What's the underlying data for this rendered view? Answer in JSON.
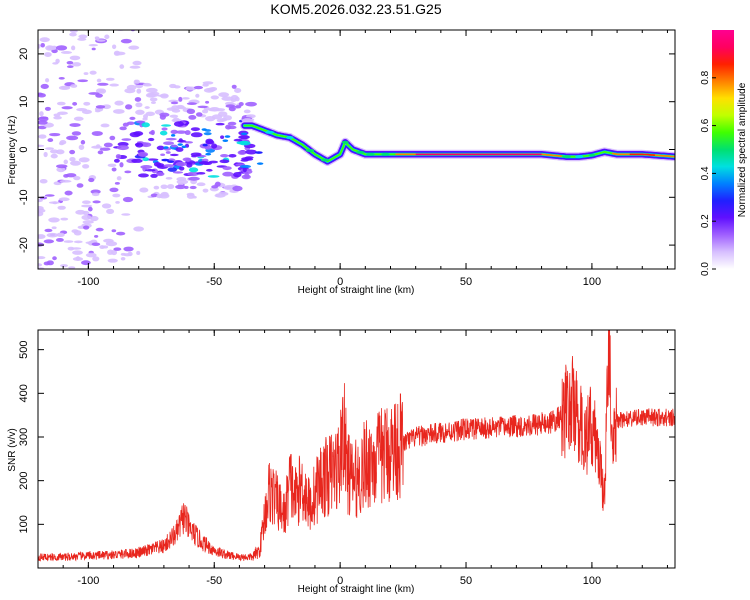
{
  "title": "KOM5.2026.032.23.51.G25",
  "chart_data": [
    {
      "type": "heatmap",
      "title": "KOM5.2026.032.23.51.G25",
      "xlabel": "Height of straight line (km)",
      "ylabel": "Frequency (Hz)",
      "xlim": [
        -120,
        133
      ],
      "ylim": [
        -25,
        25
      ],
      "xticks": [
        -100,
        -50,
        0,
        50,
        100
      ],
      "xtick_labels": [
        "-100",
        "-50",
        "0",
        "50",
        "100"
      ],
      "yticks": [
        -20,
        -10,
        0,
        10,
        20
      ],
      "ytick_labels": [
        "-20",
        "-10",
        "0",
        "10",
        "20"
      ],
      "grid": false,
      "signal_trace": {
        "height_km": [
          -35,
          -30,
          -25,
          -20,
          -15,
          -10,
          -5,
          0,
          2,
          5,
          10,
          20,
          40,
          60,
          80,
          90,
          95,
          100,
          105,
          110,
          120,
          133
        ],
        "frequency_hz": [
          5,
          4,
          3,
          2.5,
          1,
          -1,
          -2.5,
          -1,
          1.5,
          0,
          -1,
          -1,
          -1,
          -1,
          -1,
          -1.5,
          -1.5,
          -1.2,
          -0.5,
          -1,
          -1,
          -1.5
        ]
      },
      "colorbar": {
        "label": "Normalized spectral amplitude",
        "range": [
          0,
          1
        ],
        "ticks": [
          0.0,
          0.2,
          0.4,
          0.6,
          0.8
        ],
        "tick_labels": [
          "0.0",
          "0.2",
          "0.4",
          "0.6",
          "0.8"
        ],
        "colormap": [
          "#ffffff",
          "#d7bfff",
          "#a060ff",
          "#6010ff",
          "#2020ff",
          "#0080ff",
          "#00e0e0",
          "#00e070",
          "#40ff00",
          "#c0ff00",
          "#ffe000",
          "#ff8000",
          "#ff2000",
          "#ff0060",
          "#ff0090"
        ]
      }
    },
    {
      "type": "line",
      "xlabel": "Height of straight line (km)",
      "ylabel": "SNR (v/v)",
      "xlim": [
        -120,
        133
      ],
      "ylim": [
        0,
        545
      ],
      "xticks": [
        -100,
        -50,
        0,
        50,
        100
      ],
      "xtick_labels": [
        "-100",
        "-50",
        "0",
        "50",
        "100"
      ],
      "yticks": [
        100,
        200,
        300,
        400,
        500
      ],
      "ytick_labels": [
        "100",
        "200",
        "300",
        "400",
        "500"
      ],
      "grid": false,
      "series": [
        {
          "name": "SNR",
          "color": "#e8261e",
          "x": [
            -120,
            -110,
            -100,
            -90,
            -80,
            -70,
            -65,
            -62,
            -60,
            -55,
            -50,
            -45,
            -40,
            -35,
            -32,
            -30,
            -28,
            -25,
            -22,
            -20,
            -18,
            -15,
            -12,
            -10,
            -8,
            -5,
            -3,
            0,
            1,
            3,
            5,
            8,
            10,
            15,
            20,
            25,
            30,
            40,
            50,
            60,
            70,
            80,
            85,
            88,
            90,
            92,
            95,
            98,
            100,
            102,
            104,
            105,
            106,
            107,
            108,
            110,
            115,
            120,
            125,
            133
          ],
          "y": [
            25,
            25,
            28,
            30,
            35,
            50,
            80,
            120,
            90,
            60,
            40,
            30,
            25,
            25,
            40,
            120,
            180,
            150,
            120,
            200,
            160,
            190,
            140,
            170,
            200,
            210,
            220,
            240,
            330,
            220,
            200,
            210,
            240,
            250,
            270,
            285,
            300,
            310,
            318,
            320,
            325,
            330,
            335,
            350,
            360,
            380,
            330,
            300,
            330,
            280,
            200,
            160,
            420,
            480,
            250,
            340,
            340,
            345,
            345,
            345
          ]
        }
      ]
    }
  ]
}
